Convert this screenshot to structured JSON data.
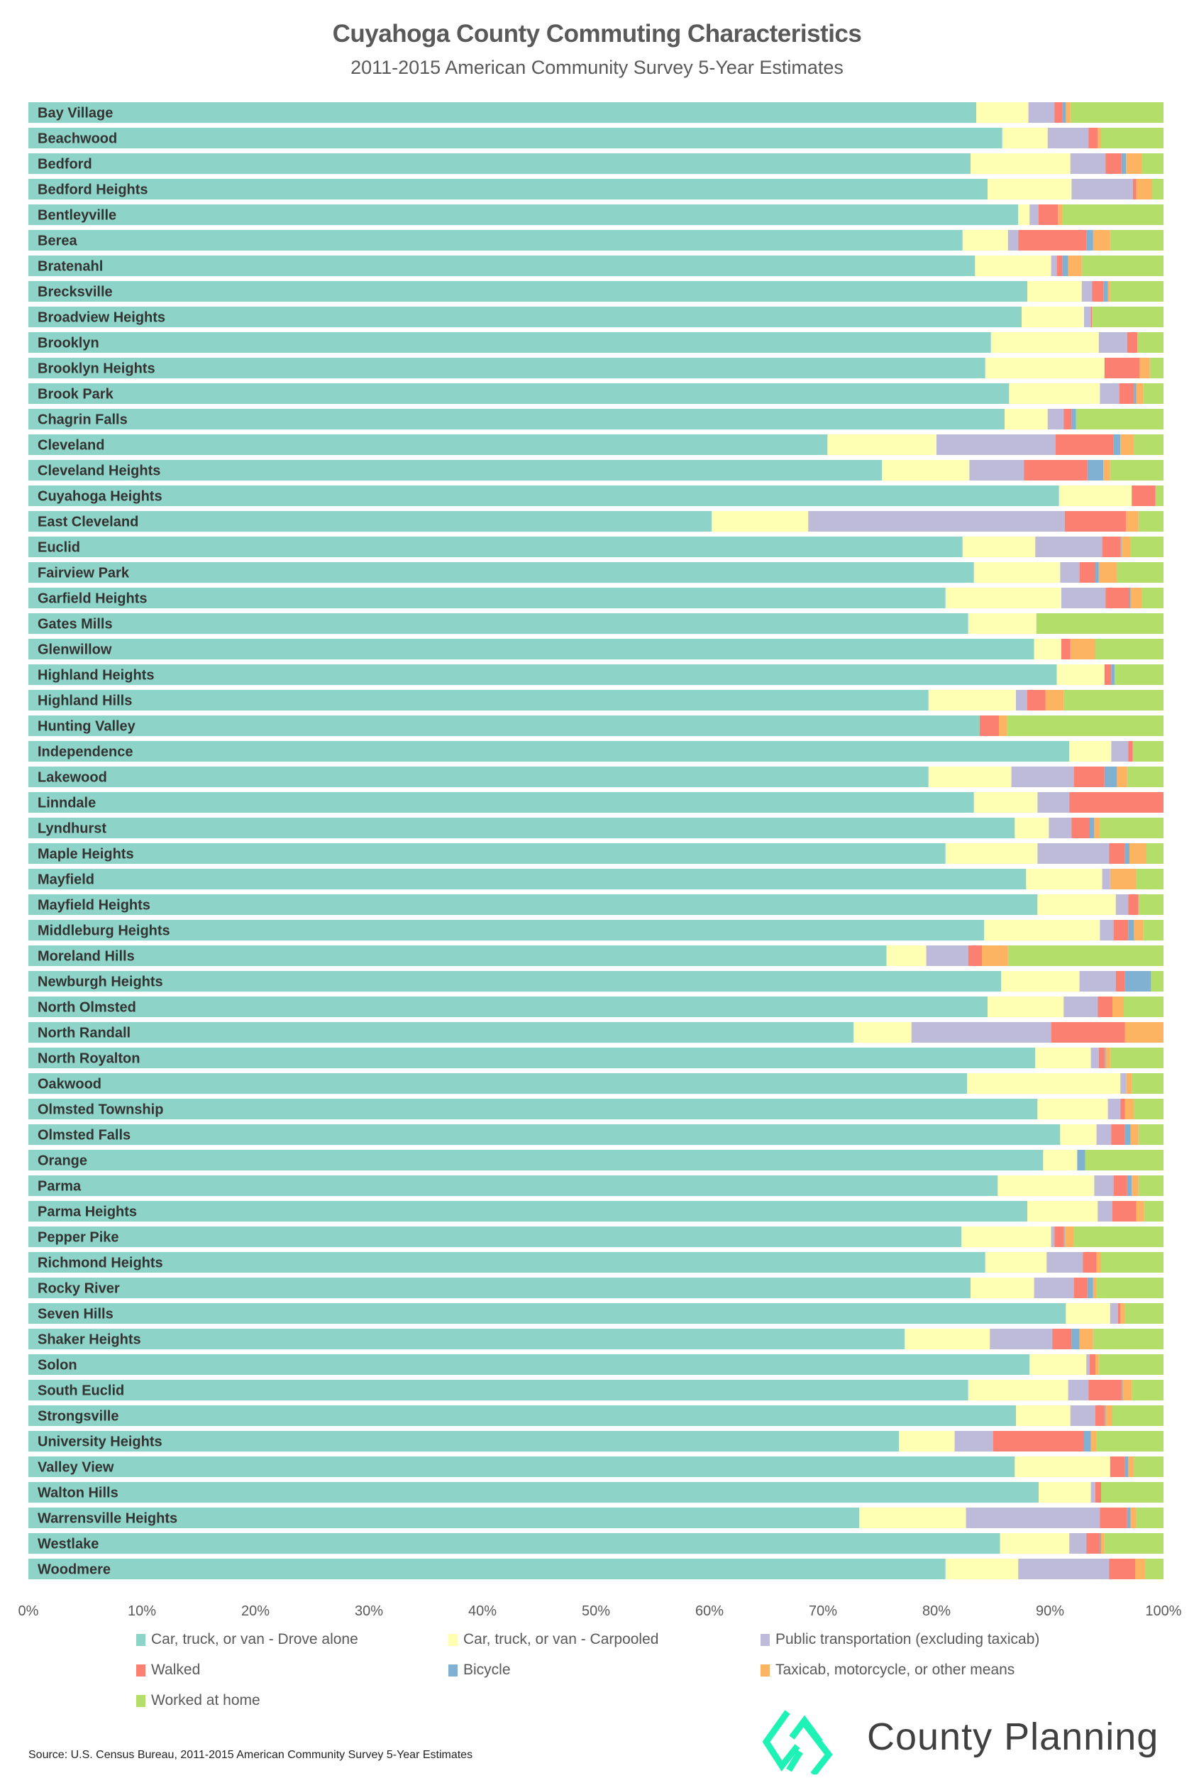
{
  "header": {
    "title": "Cuyahoga County Commuting Characteristics",
    "subtitle": "2011-2015 American Community Survey 5-Year Estimates"
  },
  "footer": {
    "source": "Source: U.S. Census Bureau, 2011-2015 American Community Survey 5-Year Estimates",
    "logo_text": "County Planning",
    "logo_color": "#1ef2b4"
  },
  "chart_data": {
    "type": "bar",
    "orientation": "horizontal",
    "stacked": "100%",
    "title": "Cuyahoga County Commuting Characteristics",
    "subtitle": "2011-2015 American Community Survey 5-Year Estimates",
    "xlabel": "",
    "ylabel": "",
    "xlim": [
      0,
      100
    ],
    "x_ticks": [
      "0%",
      "10%",
      "20%",
      "30%",
      "40%",
      "50%",
      "60%",
      "70%",
      "80%",
      "90%",
      "100%"
    ],
    "grid": false,
    "legend_position": "bottom",
    "categories": [
      "Bay Village",
      "Beachwood",
      "Bedford",
      "Bedford Heights",
      "Bentleyville",
      "Berea",
      "Bratenahl",
      "Brecksville",
      "Broadview Heights",
      "Brooklyn",
      "Brooklyn Heights",
      "Brook Park",
      "Chagrin Falls",
      "Cleveland",
      "Cleveland Heights",
      "Cuyahoga Heights",
      "East Cleveland",
      "Euclid",
      "Fairview Park",
      "Garfield Heights",
      "Gates Mills",
      "Glenwillow",
      "Highland Heights",
      "Highland Hills",
      "Hunting Valley",
      "Independence",
      "Lakewood",
      "Linndale",
      "Lyndhurst",
      "Maple Heights",
      "Mayfield",
      "Mayfield Heights",
      "Middleburg Heights",
      "Moreland Hills",
      "Newburgh Heights",
      "North Olmsted",
      "North Randall",
      "North Royalton",
      "Oakwood",
      "Olmsted Township",
      "Olmsted Falls",
      "Orange",
      "Parma",
      "Parma Heights",
      "Pepper Pike",
      "Richmond Heights",
      "Rocky River",
      "Seven Hills",
      "Shaker Heights",
      "Solon",
      "South Euclid",
      "Strongsville",
      "University Heights",
      "Valley View",
      "Walton Hills",
      "Warrensville Heights",
      "Westlake",
      "Woodmere"
    ],
    "series": [
      {
        "name": "Car, truck, or van - Drove alone",
        "color": "#8dd3c7",
        "values": [
          83.5,
          85.8,
          83.0,
          84.5,
          87.2,
          82.3,
          83.4,
          88.0,
          87.5,
          84.8,
          84.3,
          86.4,
          86.0,
          70.4,
          75.2,
          90.8,
          60.2,
          82.3,
          83.3,
          80.8,
          82.8,
          88.6,
          90.6,
          79.3,
          83.8,
          91.7,
          79.3,
          83.3,
          86.9,
          80.8,
          87.9,
          88.9,
          84.2,
          75.6,
          85.7,
          84.5,
          72.7,
          88.7,
          82.7,
          88.9,
          90.9,
          89.4,
          85.4,
          88.0,
          82.2,
          84.3,
          83.0,
          91.4,
          77.2,
          88.2,
          82.8,
          87.0,
          76.7,
          86.9,
          89.0,
          73.2,
          85.6,
          80.8
        ]
      },
      {
        "name": "Car, truck, or van - Carpooled",
        "color": "#ffffb3",
        "values": [
          4.6,
          4.0,
          8.8,
          7.4,
          1.0,
          4.0,
          6.7,
          4.8,
          5.5,
          9.5,
          10.5,
          8.0,
          3.8,
          9.6,
          7.7,
          6.4,
          8.5,
          6.4,
          7.6,
          10.2,
          6.0,
          2.4,
          4.2,
          7.7,
          0,
          3.7,
          7.3,
          5.6,
          3.0,
          8.1,
          6.7,
          6.9,
          10.2,
          3.5,
          6.9,
          6.7,
          5.1,
          4.9,
          13.5,
          6.2,
          3.2,
          3.0,
          8.5,
          6.2,
          7.9,
          5.4,
          5.6,
          3.9,
          7.5,
          5.0,
          8.8,
          4.8,
          4.9,
          8.4,
          4.6,
          9.4,
          6.1,
          6.4
        ]
      },
      {
        "name": "Public transportation (excluding taxicab)",
        "color": "#bebada",
        "values": [
          2.3,
          3.6,
          3.1,
          5.4,
          0.8,
          0.9,
          0.5,
          0.9,
          0.6,
          2.5,
          0,
          1.7,
          1.4,
          10.5,
          4.8,
          0,
          22.6,
          5.9,
          1.7,
          3.9,
          0,
          0,
          0,
          1.0,
          0,
          1.5,
          5.5,
          2.8,
          2.0,
          6.3,
          0.7,
          1.1,
          1.2,
          3.7,
          3.2,
          3.0,
          12.3,
          0.7,
          0.5,
          1.1,
          1.3,
          0,
          1.7,
          1.3,
          0.3,
          3.2,
          3.5,
          0.7,
          5.5,
          0.3,
          1.8,
          2.2,
          3.4,
          0,
          0.4,
          11.8,
          1.5,
          8.0
        ]
      },
      {
        "name": "Walked",
        "color": "#fb8072",
        "values": [
          0.7,
          0.8,
          1.4,
          0.3,
          1.7,
          6.0,
          0.5,
          1.0,
          0.1,
          0.9,
          3.1,
          1.3,
          0.7,
          5.1,
          5.6,
          2.1,
          5.4,
          1.6,
          1.4,
          2.1,
          0,
          0.8,
          0.6,
          1.6,
          1.7,
          0.4,
          2.7,
          8.3,
          1.6,
          1.4,
          0,
          0.9,
          1.3,
          1.2,
          0.8,
          1.3,
          6.5,
          0.5,
          0,
          0.4,
          1.2,
          0,
          1.2,
          2.1,
          0.8,
          1.2,
          1.2,
          0.2,
          1.7,
          0.5,
          2.9,
          0.8,
          8.0,
          1.3,
          0.5,
          2.4,
          1.2,
          2.3
        ]
      },
      {
        "name": "Bicycle",
        "color": "#80b1d3",
        "values": [
          0.3,
          0,
          0.4,
          0,
          0,
          0.6,
          0.5,
          0.4,
          0,
          0,
          0,
          0.2,
          0.4,
          0.6,
          1.4,
          0,
          0,
          0.1,
          0.3,
          0.1,
          0,
          0,
          0.3,
          0,
          0,
          0,
          1.1,
          0,
          0.4,
          0.4,
          0,
          0,
          0.5,
          0,
          2.3,
          0,
          0,
          0.1,
          0,
          0,
          0.5,
          0.7,
          0.4,
          0,
          0.1,
          0,
          0.5,
          0,
          0.7,
          0,
          0.1,
          0.1,
          0.6,
          0.3,
          0,
          0.3,
          0.1,
          0
        ]
      },
      {
        "name": "Taxicab, motorcycle, or other means",
        "color": "#fdb462",
        "values": [
          0.4,
          0.3,
          1.4,
          1.4,
          0.4,
          1.5,
          1.2,
          0.2,
          0,
          0,
          0.9,
          0.6,
          0,
          1.2,
          0.6,
          0,
          1.1,
          0.8,
          1.6,
          1.0,
          0,
          2.2,
          0,
          1.6,
          0.7,
          0,
          0.9,
          0,
          0.5,
          1.5,
          2.3,
          0,
          0.8,
          2.3,
          0,
          1.0,
          3.4,
          0.4,
          0.5,
          0.8,
          0.7,
          0,
          0.6,
          0.7,
          0.8,
          0.4,
          0.3,
          0.4,
          1.2,
          0.3,
          0.8,
          0.6,
          0.5,
          0.5,
          0,
          0.5,
          0.3,
          0.9
        ]
      },
      {
        "name": "Worked at home",
        "color": "#b3de69",
        "values": [
          8.2,
          5.5,
          1.9,
          1.0,
          8.9,
          4.7,
          7.2,
          4.7,
          6.3,
          2.3,
          1.2,
          1.8,
          7.7,
          2.6,
          4.7,
          0.7,
          2.2,
          2.9,
          4.1,
          1.9,
          11.2,
          6.0,
          4.3,
          8.8,
          13.8,
          2.7,
          3.2,
          0,
          5.6,
          1.5,
          2.4,
          2.2,
          1.8,
          13.7,
          1.1,
          3.5,
          0,
          4.7,
          2.8,
          2.6,
          2.2,
          6.9,
          2.2,
          1.7,
          7.9,
          5.5,
          5.9,
          3.4,
          6.2,
          5.7,
          2.8,
          4.5,
          5.9,
          2.6,
          5.5,
          2.4,
          5.2,
          1.6
        ]
      }
    ]
  }
}
